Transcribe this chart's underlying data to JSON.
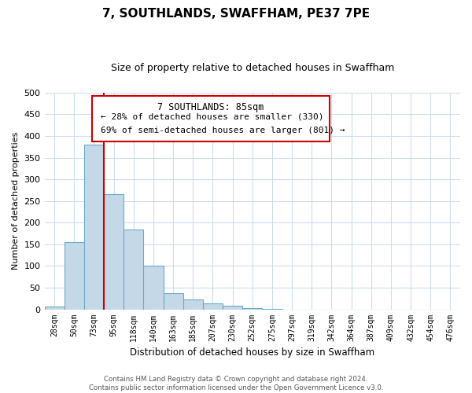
{
  "title": "7, SOUTHLANDS, SWAFFHAM, PE37 7PE",
  "subtitle": "Size of property relative to detached houses in Swaffham",
  "xlabel": "Distribution of detached houses by size in Swaffham",
  "ylabel": "Number of detached properties",
  "bar_labels": [
    "28sqm",
    "50sqm",
    "73sqm",
    "95sqm",
    "118sqm",
    "140sqm",
    "163sqm",
    "185sqm",
    "207sqm",
    "230sqm",
    "252sqm",
    "275sqm",
    "297sqm",
    "319sqm",
    "342sqm",
    "364sqm",
    "387sqm",
    "409sqm",
    "432sqm",
    "454sqm",
    "476sqm"
  ],
  "bar_values": [
    6,
    155,
    380,
    265,
    185,
    101,
    37,
    22,
    14,
    9,
    2,
    1,
    0,
    0,
    0,
    0,
    0,
    0,
    0,
    0,
    0
  ],
  "bar_color": "#c5d8e8",
  "bar_edge_color": "#6aaac8",
  "marker_color": "#cc0000",
  "annotation_title": "7 SOUTHLANDS: 85sqm",
  "annotation_line1": "← 28% of detached houses are smaller (330)",
  "annotation_line2": "69% of semi-detached houses are larger (801) →",
  "annotation_box_color": "#ffffff",
  "annotation_box_edge_color": "#cc0000",
  "ylim": [
    0,
    500
  ],
  "yticks": [
    0,
    50,
    100,
    150,
    200,
    250,
    300,
    350,
    400,
    450,
    500
  ],
  "footer_line1": "Contains HM Land Registry data © Crown copyright and database right 2024.",
  "footer_line2": "Contains public sector information licensed under the Open Government Licence v3.0.",
  "background_color": "#ffffff",
  "grid_color": "#ccddee"
}
